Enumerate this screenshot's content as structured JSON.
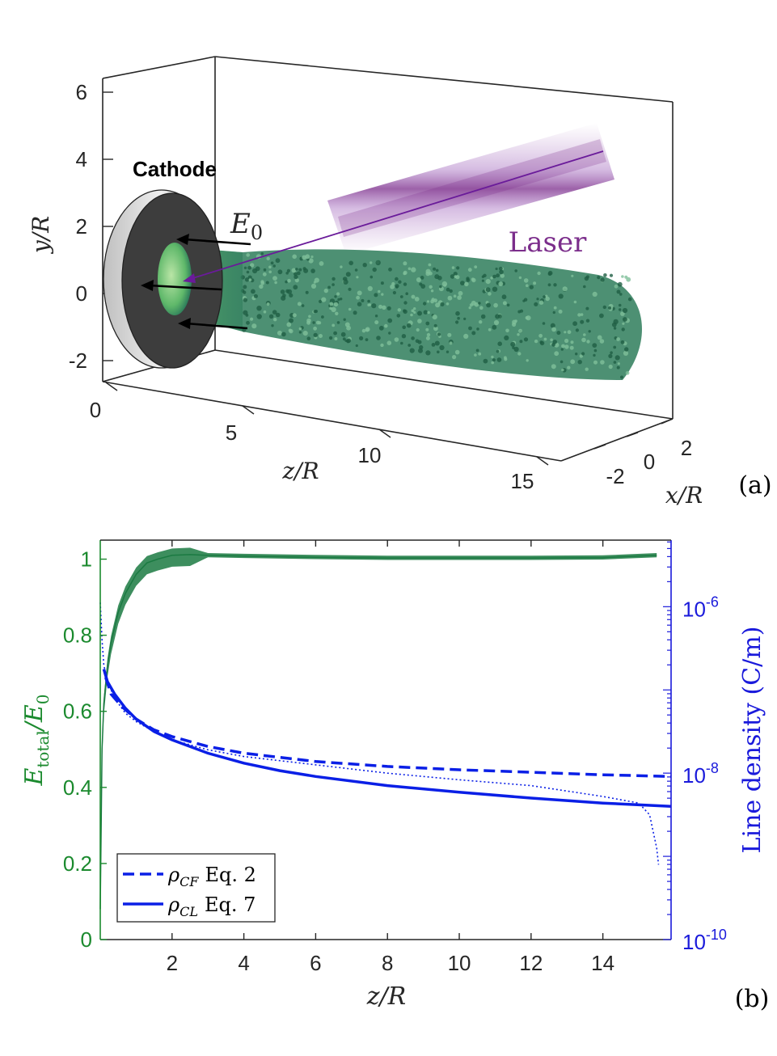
{
  "panel_a": {
    "tag": "(a)",
    "cathode_label": "Cathode",
    "field_label": "E",
    "field_label_sub": "0",
    "laser_label": "Laser",
    "y_axis_label": "y/R",
    "z_axis_label": "z/R",
    "x_axis_label": "x/R",
    "y_ticks": [
      "6",
      "4",
      "2",
      "0",
      "-2"
    ],
    "z_ticks": [
      "0",
      "5",
      "10",
      "15"
    ],
    "x_ticks": [
      "2",
      "0",
      "-2"
    ],
    "colors": {
      "beam": "#2e7d5b",
      "laser": "#7b2d8b",
      "cathode": "#3a3a3a",
      "arrows": "#000000"
    }
  },
  "chart_data": [
    {
      "type": "line",
      "title": "",
      "tag": "(b)",
      "xlabel": "z/R",
      "ylabel_left_main": "E",
      "ylabel_left_sub": "total",
      "ylabel_left_rest": "/E",
      "ylabel_left_rest_sub": "0",
      "ylabel_right": "Line density (C/m)",
      "xlim": [
        0,
        15.9
      ],
      "ylim_left": [
        0,
        1.05
      ],
      "ylim_right_log10": [
        -10,
        -5.2
      ],
      "y_right_scale": "log",
      "x_ticks": [
        2,
        4,
        6,
        8,
        10,
        12,
        14
      ],
      "y_left_ticks": [
        "0",
        "0.2",
        "0.4",
        "0.6",
        "0.8",
        "1"
      ],
      "y_right_ticks": [
        {
          "base": "10",
          "exp": "-10",
          "log10": -10
        },
        {
          "base": "10",
          "exp": "-8",
          "log10": -8
        },
        {
          "base": "10",
          "exp": "-6",
          "log10": -6
        }
      ],
      "colors": {
        "field": "#1b7a42",
        "density": "#0a1fe6",
        "left_axis": "#1b8a2e",
        "right_axis": "#1a1adb"
      },
      "legend": {
        "placement": "bottom-left",
        "entries": [
          {
            "symbol": "ρ",
            "sub": "CF",
            "text": "Eq. 2",
            "style": "dashed"
          },
          {
            "symbol": "ρ",
            "sub": "CL",
            "text": "Eq. 7",
            "style": "solid"
          }
        ]
      },
      "series": [
        {
          "axis": "left",
          "style": "simulation-band",
          "x": [
            0.0,
            0.05,
            0.1,
            0.2,
            0.3,
            0.5,
            0.7,
            1.0,
            1.3,
            1.6,
            2.0,
            2.5,
            3.0,
            4.0,
            6.0,
            8.0,
            10.0,
            12.0,
            14.0,
            15.5
          ],
          "values": [
            0.08,
            0.5,
            0.62,
            0.72,
            0.78,
            0.86,
            0.91,
            0.96,
            0.99,
            1.0,
            1.01,
            1.012,
            1.01,
            1.008,
            1.005,
            1.003,
            1.003,
            1.003,
            1.004,
            1.01
          ]
        },
        {
          "axis": "right",
          "name": "ρCF Eq. 2",
          "style": "dashed",
          "x": [
            0.15,
            0.3,
            0.6,
            1.0,
            1.5,
            2.0,
            3.0,
            4.0,
            6.0,
            8.0,
            10.0,
            12.0,
            14.0,
            15.9
          ],
          "log10_values": [
            -6.85,
            -7.05,
            -7.2,
            -7.35,
            -7.48,
            -7.56,
            -7.68,
            -7.76,
            -7.86,
            -7.92,
            -7.96,
            -7.99,
            -8.02,
            -8.04
          ]
        },
        {
          "axis": "right",
          "name": "ρCL Eq. 7",
          "style": "solid",
          "x": [
            0.1,
            0.2,
            0.4,
            0.7,
            1.0,
            1.5,
            2.0,
            3.0,
            4.0,
            5.0,
            6.0,
            8.0,
            10.0,
            12.0,
            14.0,
            15.9
          ],
          "log10_values": [
            -6.75,
            -6.9,
            -7.05,
            -7.22,
            -7.35,
            -7.5,
            -7.6,
            -7.76,
            -7.88,
            -7.97,
            -8.04,
            -8.15,
            -8.23,
            -8.3,
            -8.36,
            -8.4
          ]
        },
        {
          "axis": "right",
          "style": "simulation-dotted",
          "x": [
            0.0,
            0.05,
            0.1,
            0.2,
            0.4,
            0.7,
            1.0,
            1.5,
            2.0,
            3.0,
            4.0,
            6.0,
            8.0,
            10.0,
            12.0,
            14.0,
            15.0,
            15.3,
            15.5,
            15.55
          ],
          "log10_values": [
            -5.95,
            -6.4,
            -6.7,
            -6.9,
            -7.1,
            -7.28,
            -7.38,
            -7.5,
            -7.6,
            -7.72,
            -7.8,
            -7.9,
            -8.0,
            -8.08,
            -8.15,
            -8.28,
            -8.36,
            -8.5,
            -8.9,
            -9.1
          ]
        }
      ]
    }
  ]
}
